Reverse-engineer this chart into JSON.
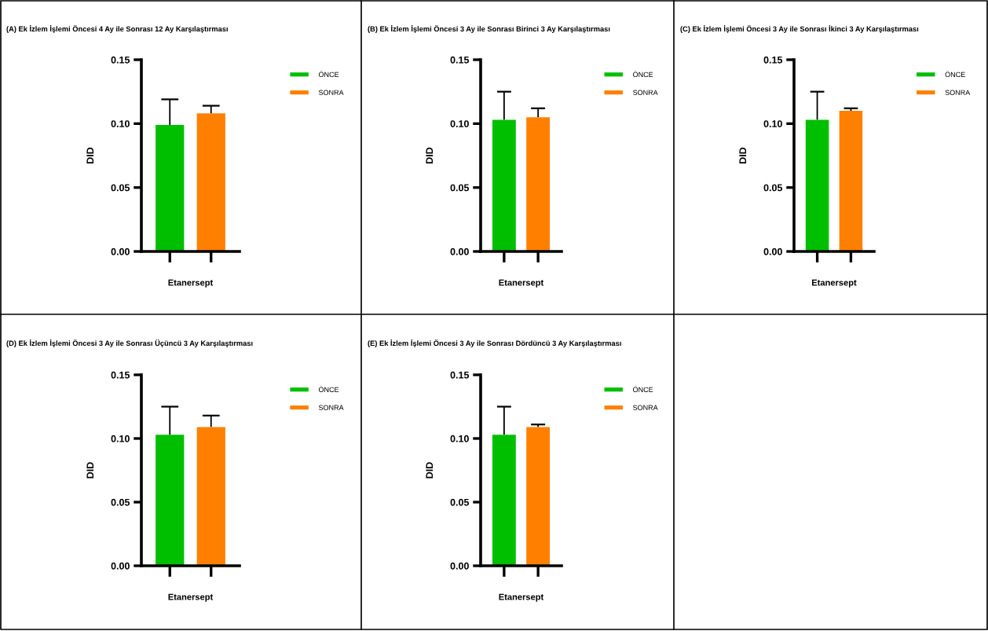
{
  "chart_data": [
    {
      "type": "bar",
      "title": "(A) Ek İzlem İşlemi Öncesi 4 Ay ile Sonrası 12 Ay Karşılaştırması",
      "xlabel": "Etanersept",
      "ylabel": "DID",
      "categories": [
        null
      ],
      "ylim": [
        0,
        0.15
      ],
      "yticks": [
        {
          "value": 0,
          "label": "0.00"
        },
        {
          "value": 0.05,
          "label": "0.05"
        },
        {
          "value": 0.1,
          "label": "0.10"
        },
        {
          "value": 0.15,
          "label": "0.15"
        }
      ],
      "grid": false,
      "legend": "top right",
      "series": [
        {
          "name": "ÖNCE",
          "color": "#00bf00",
          "values": [
            0.099
          ],
          "errors": [
            [
              0.099,
              0.119
            ]
          ]
        },
        {
          "name": "SONRA",
          "color": "#ff8000",
          "values": [
            0.108
          ],
          "errors": [
            [
              0.108,
              0.114
            ]
          ]
        }
      ]
    },
    {
      "type": "bar",
      "title": "(B) Ek İzlem İşlemi Öncesi 3 Ay ile Sonrası Birinci 3 Ay Karşılaştırması",
      "xlabel": "Etanersept",
      "ylabel": "DID",
      "categories": [
        null
      ],
      "ylim": [
        0,
        0.15
      ],
      "yticks": [
        {
          "value": 0,
          "label": "0.00"
        },
        {
          "value": 0.05,
          "label": "0.05"
        },
        {
          "value": 0.1,
          "label": "0.10"
        },
        {
          "value": 0.15,
          "label": "0.15"
        }
      ],
      "grid": false,
      "legend": "top right",
      "series": [
        {
          "name": "ÖNCE",
          "color": "#00bf00",
          "values": [
            0.103
          ],
          "errors": [
            [
              0.103,
              0.125
            ]
          ]
        },
        {
          "name": "SONRA",
          "color": "#ff8000",
          "values": [
            0.105
          ],
          "errors": [
            [
              0.105,
              0.112
            ]
          ]
        }
      ]
    },
    {
      "type": "bar",
      "title": "(C) Ek İzlem İşlemi Öncesi 3 Ay ile Sonrası İkinci 3 Ay Karşılaştırması",
      "xlabel": "Etanersept",
      "ylabel": "DID",
      "categories": [
        null
      ],
      "ylim": [
        0,
        0.15
      ],
      "yticks": [
        {
          "value": 0,
          "label": "0.00"
        },
        {
          "value": 0.05,
          "label": "0.05"
        },
        {
          "value": 0.1,
          "label": "0.10"
        },
        {
          "value": 0.15,
          "label": "0.15"
        }
      ],
      "grid": false,
      "legend": "top right",
      "series": [
        {
          "name": "ÖNCE",
          "color": "#00bf00",
          "values": [
            0.103
          ],
          "errors": [
            [
              0.103,
              0.125
            ]
          ]
        },
        {
          "name": "SONRA",
          "color": "#ff8000",
          "values": [
            0.11
          ],
          "errors": [
            [
              0.11,
              0.112
            ]
          ]
        }
      ]
    },
    {
      "type": "bar",
      "title": "(D) Ek İzlem İşlemi Öncesi 3 Ay ile Sonrası Üçüncü 3 Ay Karşılaştırması",
      "xlabel": "Etanersept",
      "ylabel": "DID",
      "categories": [
        null
      ],
      "ylim": [
        0,
        0.15
      ],
      "yticks": [
        {
          "value": 0,
          "label": "0.00"
        },
        {
          "value": 0.05,
          "label": "0.05"
        },
        {
          "value": 0.1,
          "label": "0.10"
        },
        {
          "value": 0.15,
          "label": "0.15"
        }
      ],
      "grid": false,
      "legend": "top right",
      "series": [
        {
          "name": "ÖNCE",
          "color": "#00bf00",
          "values": [
            0.103
          ],
          "errors": [
            [
              0.103,
              0.125
            ]
          ]
        },
        {
          "name": "SONRA",
          "color": "#ff8000",
          "values": [
            0.109
          ],
          "errors": [
            [
              0.109,
              0.118
            ]
          ]
        }
      ]
    },
    {
      "type": "bar",
      "title": "(E) Ek İzlem İşlemi Öncesi 3 Ay ile Sonrası Dördüncü 3 Ay Karşılaştırması",
      "xlabel": "Etanersept",
      "ylabel": "DID",
      "categories": [
        null
      ],
      "ylim": [
        0,
        0.15
      ],
      "yticks": [
        {
          "value": 0,
          "label": "0.00"
        },
        {
          "value": 0.05,
          "label": "0.05"
        },
        {
          "value": 0.1,
          "label": "0.10"
        },
        {
          "value": 0.15,
          "label": "0.15"
        }
      ],
      "grid": false,
      "legend": "top right",
      "series": [
        {
          "name": "ÖNCE",
          "color": "#00bf00",
          "values": [
            0.103
          ],
          "errors": [
            [
              0.103,
              0.125
            ]
          ]
        },
        {
          "name": "SONRA",
          "color": "#ff8000",
          "values": [
            0.109
          ],
          "errors": [
            [
              0.109,
              0.111
            ]
          ]
        }
      ]
    }
  ]
}
